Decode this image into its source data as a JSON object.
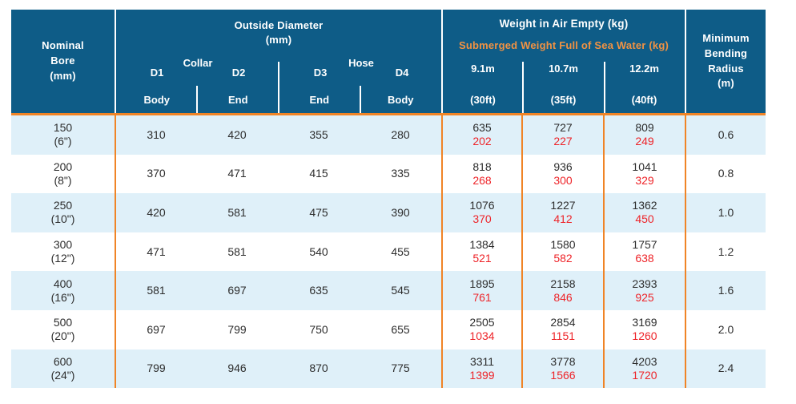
{
  "colors": {
    "header_bg": "#0e5c87",
    "accent_orange_line": "#f08426",
    "accent_orange_text": "#f09243",
    "submerged_red": "#ee2429",
    "row_alt_blue": "#dff0f9",
    "body_text": "#2d2d2d"
  },
  "header": {
    "nominal_bore": "Nominal\nBore\n(mm)",
    "outside_diameter": {
      "title": "Outside Diameter\n(mm)",
      "collar": "Collar",
      "hose": "Hose",
      "cols": [
        {
          "d": "D1",
          "part": "Body"
        },
        {
          "d": "D2",
          "part": "End"
        },
        {
          "d": "D3",
          "part": "End"
        },
        {
          "d": "D4",
          "part": "Body"
        }
      ]
    },
    "weight": {
      "title_air": "Weight in Air Empty (kg)",
      "title_submerged": "Submerged Weight Full of Sea Water (kg)",
      "cols": [
        {
          "length_m": "9.1m",
          "length_ft": "(30ft)"
        },
        {
          "length_m": "10.7m",
          "length_ft": "(35ft)"
        },
        {
          "length_m": "12.2m",
          "length_ft": "(40ft)"
        }
      ]
    },
    "min_bending_radius": "Minimum\nBending\nRadius\n(m)"
  },
  "rows": [
    {
      "bore_mm": "150",
      "bore_in": "(6\")",
      "d1": "310",
      "d2": "420",
      "d3": "355",
      "d4": "280",
      "w30": {
        "air": "635",
        "sub": "202"
      },
      "w35": {
        "air": "727",
        "sub": "227"
      },
      "w40": {
        "air": "809",
        "sub": "249"
      },
      "mbr": "0.6"
    },
    {
      "bore_mm": "200",
      "bore_in": "(8\")",
      "d1": "370",
      "d2": "471",
      "d3": "415",
      "d4": "335",
      "w30": {
        "air": "818",
        "sub": "268"
      },
      "w35": {
        "air": "936",
        "sub": "300"
      },
      "w40": {
        "air": "1041",
        "sub": "329"
      },
      "mbr": "0.8"
    },
    {
      "bore_mm": "250",
      "bore_in": "(10\")",
      "d1": "420",
      "d2": "581",
      "d3": "475",
      "d4": "390",
      "w30": {
        "air": "1076",
        "sub": "370"
      },
      "w35": {
        "air": "1227",
        "sub": "412"
      },
      "w40": {
        "air": "1362",
        "sub": "450"
      },
      "mbr": "1.0"
    },
    {
      "bore_mm": "300",
      "bore_in": "(12\")",
      "d1": "471",
      "d2": "581",
      "d3": "540",
      "d4": "455",
      "w30": {
        "air": "1384",
        "sub": "521"
      },
      "w35": {
        "air": "1580",
        "sub": "582"
      },
      "w40": {
        "air": "1757",
        "sub": "638"
      },
      "mbr": "1.2"
    },
    {
      "bore_mm": "400",
      "bore_in": "(16\")",
      "d1": "581",
      "d2": "697",
      "d3": "635",
      "d4": "545",
      "w30": {
        "air": "1895",
        "sub": "761"
      },
      "w35": {
        "air": "2158",
        "sub": "846"
      },
      "w40": {
        "air": "2393",
        "sub": "925"
      },
      "mbr": "1.6"
    },
    {
      "bore_mm": "500",
      "bore_in": "(20\")",
      "d1": "697",
      "d2": "799",
      "d3": "750",
      "d4": "655",
      "w30": {
        "air": "2505",
        "sub": "1034"
      },
      "w35": {
        "air": "2854",
        "sub": "1151"
      },
      "w40": {
        "air": "3169",
        "sub": "1260"
      },
      "mbr": "2.0"
    },
    {
      "bore_mm": "600",
      "bore_in": "(24\")",
      "d1": "799",
      "d2": "946",
      "d3": "870",
      "d4": "775",
      "w30": {
        "air": "3311",
        "sub": "1399"
      },
      "w35": {
        "air": "3778",
        "sub": "1566"
      },
      "w40": {
        "air": "4203",
        "sub": "1720"
      },
      "mbr": "2.4"
    }
  ]
}
